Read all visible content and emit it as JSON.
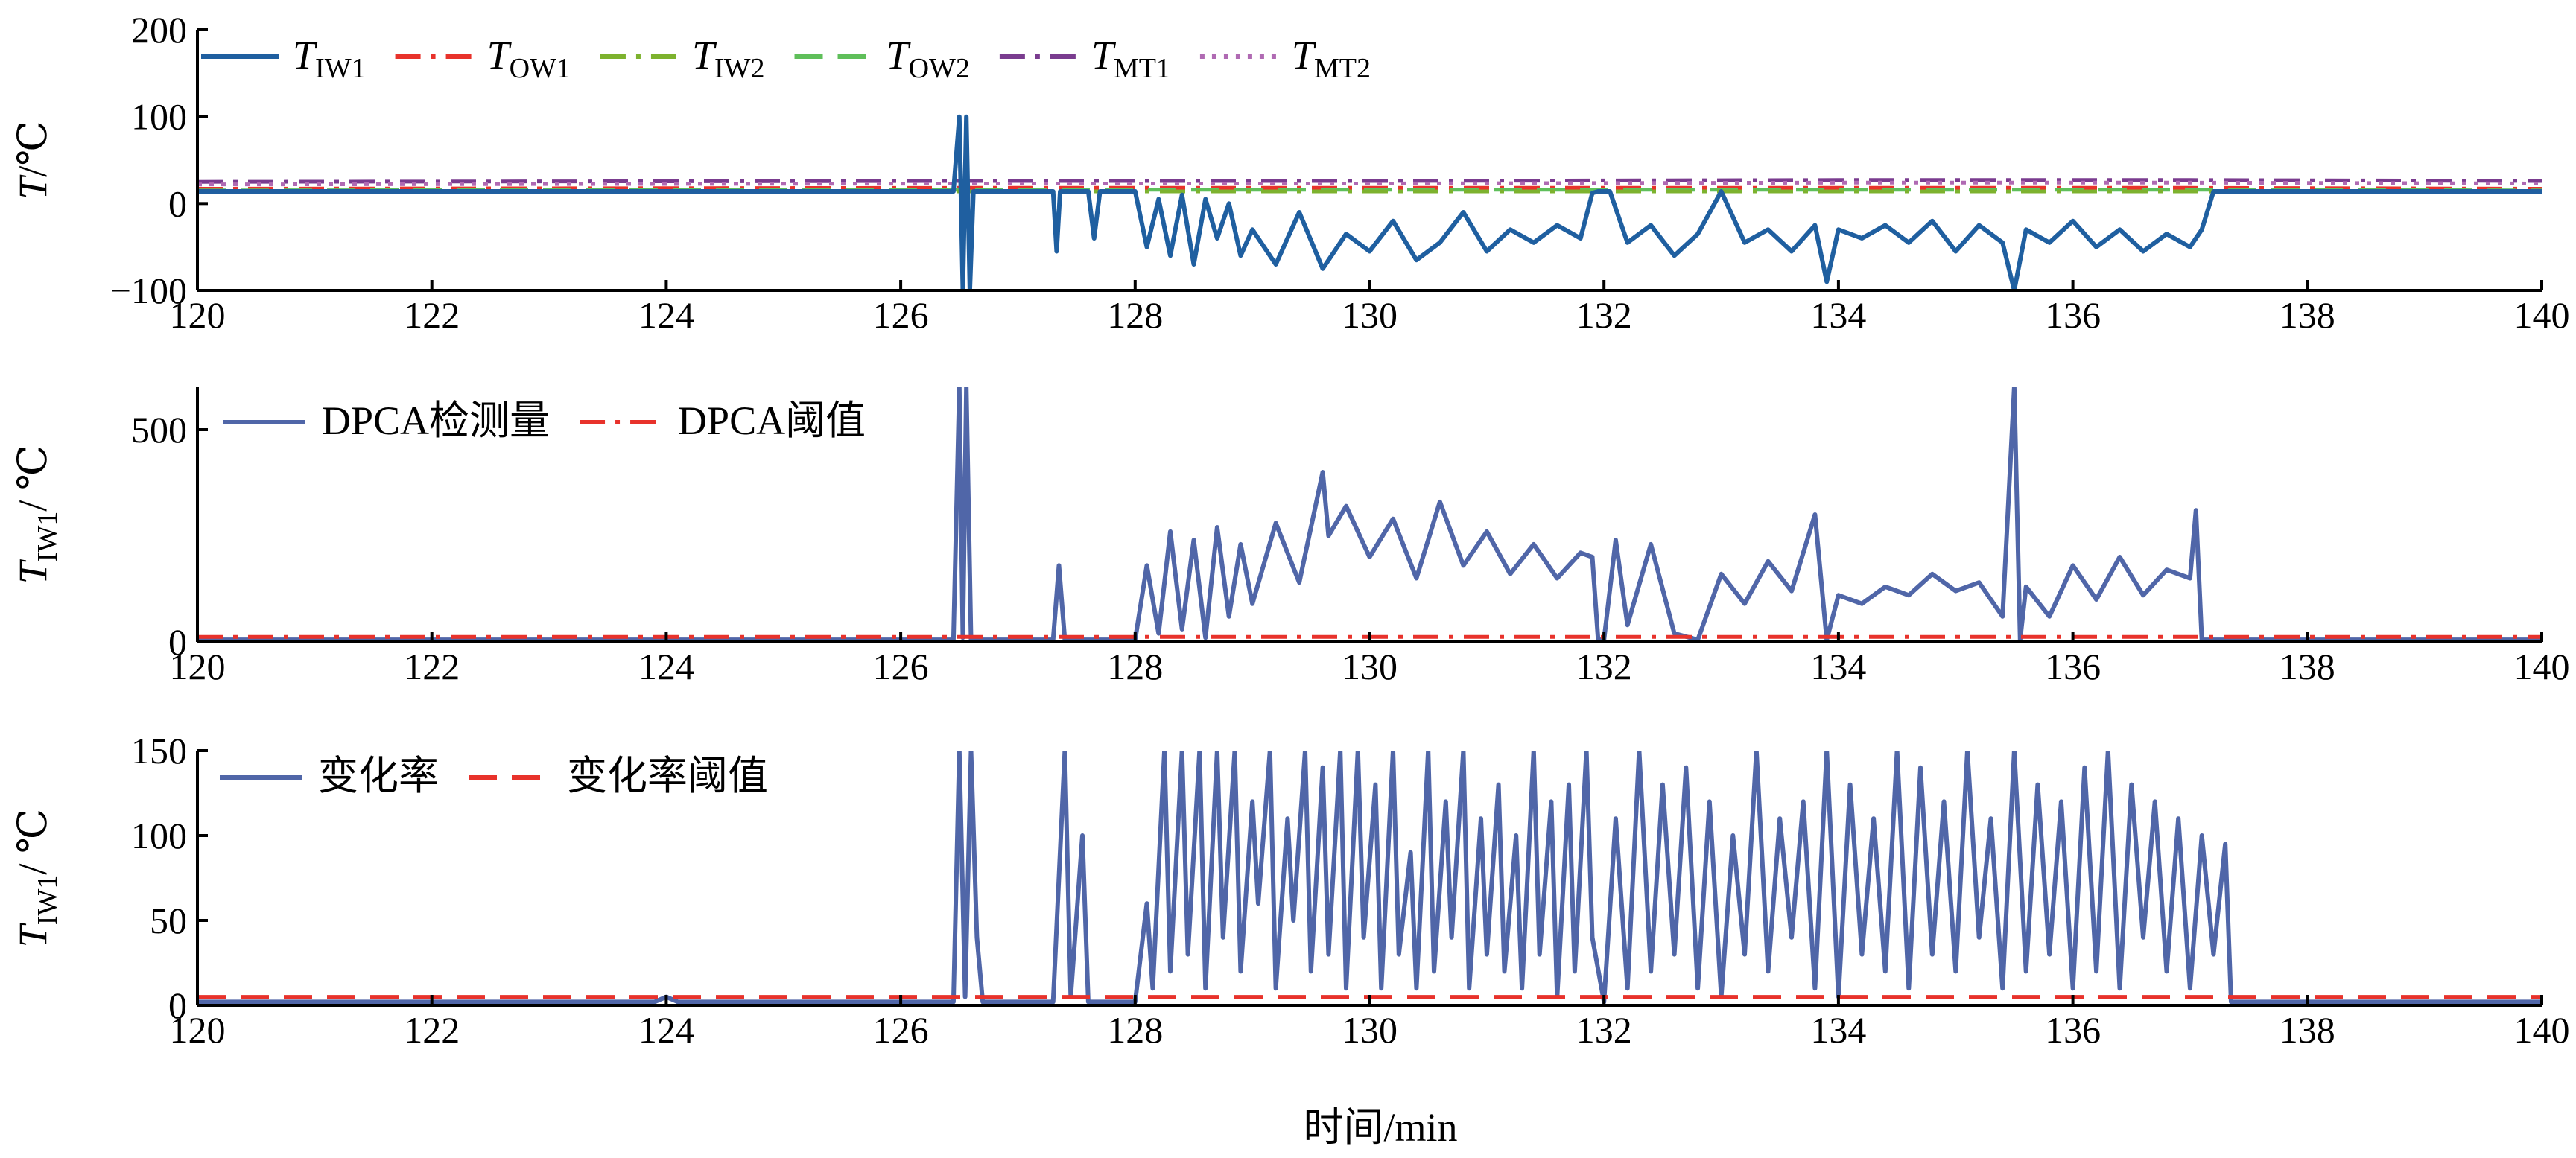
{
  "colors": {
    "TIW1": "#1f5fa0",
    "TOW1": "#e8322b",
    "TIW2": "#7db22e",
    "TOW2": "#5fbf5a",
    "TMT1": "#7a3c8f",
    "TMT2": "#b06ab3",
    "signal": "#5066a8",
    "threshold": "#e8322b",
    "axis": "#000000"
  },
  "xlabel": "时间/min",
  "chart_data": [
    {
      "type": "line",
      "id": "temps",
      "ylabel": {
        "main": "T",
        "rest": "/℃"
      },
      "xlim": [
        120,
        140
      ],
      "ylim": [
        -100,
        200
      ],
      "xticks": [
        "120",
        "122",
        "124",
        "126",
        "128",
        "130",
        "132",
        "134",
        "136",
        "138",
        "140"
      ],
      "yticks": [
        "−100",
        "0",
        "100",
        "200"
      ],
      "yticks_values": [
        -100,
        0,
        100,
        200
      ],
      "legend": [
        {
          "key": "TIW1",
          "main": "T",
          "sub": "IW1",
          "style": "solid"
        },
        {
          "key": "TOW1",
          "main": "T",
          "sub": "OW1",
          "style": "dashdot"
        },
        {
          "key": "TIW2",
          "main": "T",
          "sub": "IW2",
          "style": "dashdot"
        },
        {
          "key": "TOW2",
          "main": "T",
          "sub": "OW2",
          "style": "dashed"
        },
        {
          "key": "TMT1",
          "main": "T",
          "sub": "MT1",
          "style": "dashdot"
        },
        {
          "key": "TMT2",
          "main": "T",
          "sub": "MT2",
          "style": "dotted"
        }
      ],
      "series": [
        {
          "key": "TMT1",
          "x": [
            120,
            126.5,
            130,
            134,
            137,
            140
          ],
          "y": [
            25,
            26,
            26,
            27,
            27,
            26
          ]
        },
        {
          "key": "TMT2",
          "x": [
            120,
            126.5,
            130,
            134,
            137,
            140
          ],
          "y": [
            22,
            23,
            23,
            24,
            24,
            23
          ]
        },
        {
          "key": "TOW1",
          "x": [
            120,
            126.5,
            130,
            134,
            137,
            140
          ],
          "y": [
            17,
            18,
            18,
            18,
            18,
            17
          ]
        },
        {
          "key": "TOW2",
          "x": [
            120,
            126.5,
            130,
            134,
            137,
            140
          ],
          "y": [
            15,
            16,
            16,
            16,
            16,
            15
          ]
        },
        {
          "key": "TIW2",
          "x": [
            120,
            126.5,
            130,
            134,
            137,
            140
          ],
          "y": [
            13,
            14,
            14,
            14,
            14,
            13
          ]
        },
        {
          "key": "TIW1",
          "x": [
            120,
            126.45,
            126.5,
            126.53,
            126.56,
            126.59,
            126.62,
            126.66,
            127.3,
            127.33,
            127.36,
            127.4,
            127.6,
            127.65,
            127.7,
            128.0,
            128.1,
            128.2,
            128.3,
            128.4,
            128.5,
            128.6,
            128.7,
            128.8,
            128.9,
            129.0,
            129.2,
            129.4,
            129.6,
            129.8,
            130.0,
            130.2,
            130.4,
            130.6,
            130.8,
            131.0,
            131.2,
            131.4,
            131.6,
            131.8,
            131.9,
            131.95,
            132.05,
            132.2,
            132.4,
            132.6,
            132.8,
            133.0,
            133.2,
            133.4,
            133.6,
            133.8,
            133.9,
            134.0,
            134.2,
            134.4,
            134.6,
            134.8,
            135.0,
            135.2,
            135.4,
            135.5,
            135.6,
            135.8,
            136.0,
            136.2,
            136.4,
            136.6,
            136.8,
            137.0,
            137.1,
            137.2,
            137.3,
            140
          ],
          "y": [
            14,
            14,
            100,
            -100,
            100,
            -100,
            14,
            14,
            14,
            -55,
            14,
            14,
            14,
            -40,
            14,
            14,
            -50,
            5,
            -60,
            10,
            -70,
            5,
            -40,
            0,
            -60,
            -30,
            -70,
            -10,
            -75,
            -35,
            -55,
            -20,
            -65,
            -45,
            -10,
            -55,
            -30,
            -45,
            -25,
            -40,
            12,
            14,
            14,
            -45,
            -25,
            -60,
            -35,
            14,
            -45,
            -30,
            -55,
            -25,
            -90,
            -30,
            -40,
            -25,
            -45,
            -20,
            -55,
            -25,
            -45,
            -100,
            -30,
            -45,
            -20,
            -50,
            -30,
            -55,
            -35,
            -50,
            -30,
            14,
            14,
            14
          ]
        }
      ]
    },
    {
      "type": "line",
      "id": "dpca",
      "ylabel": {
        "main": "T",
        "sub": "IW1",
        "rest": "/ ℃"
      },
      "xlim": [
        120,
        140
      ],
      "ylim": [
        0,
        600
      ],
      "xticks": [
        "120",
        "122",
        "124",
        "126",
        "128",
        "130",
        "132",
        "134",
        "136",
        "138",
        "140"
      ],
      "yticks": [
        "0",
        "500"
      ],
      "yticks_values": [
        0,
        500
      ],
      "legend": [
        {
          "key": "signal",
          "main": "DPCA检测量",
          "style": "solid"
        },
        {
          "key": "threshold",
          "main": "DPCA阈值",
          "style": "dashdot"
        }
      ],
      "series": [
        {
          "key": "signal",
          "x": [
            120,
            126.45,
            126.5,
            126.53,
            126.56,
            126.6,
            126.62,
            127.3,
            127.35,
            127.4,
            127.45,
            128.0,
            128.1,
            128.2,
            128.3,
            128.4,
            128.5,
            128.6,
            128.7,
            128.8,
            128.9,
            129.0,
            129.2,
            129.4,
            129.6,
            129.65,
            129.8,
            130.0,
            130.2,
            130.4,
            130.6,
            130.8,
            131.0,
            131.2,
            131.4,
            131.6,
            131.8,
            131.9,
            131.95,
            132.0,
            132.1,
            132.2,
            132.4,
            132.6,
            132.8,
            133.0,
            133.2,
            133.4,
            133.6,
            133.8,
            133.9,
            134.0,
            134.2,
            134.4,
            134.6,
            134.8,
            135.0,
            135.2,
            135.4,
            135.5,
            135.55,
            135.6,
            135.8,
            136.0,
            136.2,
            136.4,
            136.6,
            136.8,
            137.0,
            137.05,
            137.1,
            137.2,
            140
          ],
          "y": [
            5,
            5,
            600,
            10,
            600,
            5,
            5,
            5,
            180,
            5,
            5,
            5,
            180,
            20,
            260,
            30,
            240,
            10,
            270,
            60,
            230,
            90,
            280,
            140,
            400,
            250,
            320,
            200,
            290,
            150,
            330,
            180,
            260,
            160,
            230,
            150,
            210,
            200,
            5,
            5,
            240,
            40,
            230,
            20,
            5,
            160,
            90,
            190,
            120,
            300,
            5,
            110,
            90,
            130,
            110,
            160,
            120,
            140,
            60,
            600,
            5,
            130,
            60,
            180,
            100,
            200,
            110,
            170,
            150,
            310,
            5,
            5,
            5
          ]
        },
        {
          "key": "threshold",
          "x": [
            120,
            140
          ],
          "y": [
            12,
            12
          ]
        }
      ]
    },
    {
      "type": "line",
      "id": "rate",
      "ylabel": {
        "main": "T",
        "sub": "IW1",
        "rest": "/ ℃"
      },
      "xlim": [
        120,
        140
      ],
      "ylim": [
        0,
        150
      ],
      "xticks": [
        "120",
        "122",
        "124",
        "126",
        "128",
        "130",
        "132",
        "134",
        "136",
        "138",
        "140"
      ],
      "yticks": [
        "0",
        "50",
        "100",
        "150"
      ],
      "yticks_values": [
        0,
        50,
        100,
        150
      ],
      "legend": [
        {
          "key": "signal",
          "main": "变化率",
          "style": "solid"
        },
        {
          "key": "threshold",
          "main": "变化率阈值",
          "style": "dashed"
        }
      ],
      "series": [
        {
          "key": "signal",
          "x": [
            120,
            123.9,
            124.0,
            124.1,
            126.45,
            126.5,
            126.55,
            126.6,
            126.65,
            126.7,
            127.3,
            127.4,
            127.45,
            127.55,
            127.6,
            127.65,
            128.0,
            128.1,
            128.15,
            128.25,
            128.3,
            128.4,
            128.45,
            128.55,
            128.6,
            128.7,
            128.75,
            128.85,
            128.9,
            129.0,
            129.05,
            129.15,
            129.2,
            129.3,
            129.35,
            129.45,
            129.5,
            129.6,
            129.65,
            129.75,
            129.8,
            129.9,
            129.95,
            130.05,
            130.1,
            130.2,
            130.25,
            130.35,
            130.4,
            130.5,
            130.55,
            130.65,
            130.7,
            130.8,
            130.85,
            130.95,
            131.0,
            131.1,
            131.15,
            131.25,
            131.3,
            131.4,
            131.45,
            131.55,
            131.6,
            131.7,
            131.75,
            131.85,
            131.9,
            132.0,
            132.1,
            132.2,
            132.3,
            132.4,
            132.5,
            132.6,
            132.7,
            132.8,
            132.9,
            133.0,
            133.1,
            133.2,
            133.3,
            133.4,
            133.5,
            133.6,
            133.7,
            133.8,
            133.9,
            134.0,
            134.1,
            134.2,
            134.3,
            134.4,
            134.5,
            134.6,
            134.7,
            134.8,
            134.9,
            135.0,
            135.1,
            135.2,
            135.3,
            135.4,
            135.5,
            135.6,
            135.7,
            135.8,
            135.9,
            136.0,
            136.1,
            136.2,
            136.3,
            136.4,
            136.5,
            136.6,
            136.7,
            136.8,
            136.9,
            137.0,
            137.1,
            137.2,
            137.3,
            137.35,
            137.4,
            140
          ],
          "y": [
            2,
            2,
            5,
            2,
            2,
            150,
            5,
            150,
            40,
            2,
            2,
            150,
            5,
            100,
            2,
            2,
            2,
            60,
            10,
            150,
            20,
            150,
            30,
            150,
            10,
            150,
            40,
            150,
            20,
            120,
            60,
            150,
            10,
            110,
            50,
            150,
            20,
            140,
            30,
            150,
            10,
            150,
            40,
            130,
            10,
            150,
            30,
            90,
            10,
            150,
            20,
            120,
            40,
            150,
            10,
            110,
            30,
            130,
            20,
            100,
            10,
            150,
            30,
            120,
            5,
            130,
            20,
            150,
            40,
            2,
            110,
            10,
            150,
            20,
            130,
            30,
            140,
            10,
            120,
            5,
            100,
            30,
            150,
            20,
            110,
            40,
            120,
            10,
            150,
            5,
            130,
            30,
            110,
            20,
            150,
            10,
            140,
            30,
            120,
            20,
            150,
            40,
            110,
            10,
            150,
            20,
            130,
            30,
            120,
            10,
            140,
            20,
            150,
            10,
            130,
            40,
            120,
            20,
            110,
            10,
            100,
            30,
            95,
            2,
            2,
            2
          ]
        },
        {
          "key": "threshold",
          "x": [
            120,
            140
          ],
          "y": [
            5,
            5
          ]
        }
      ]
    }
  ]
}
